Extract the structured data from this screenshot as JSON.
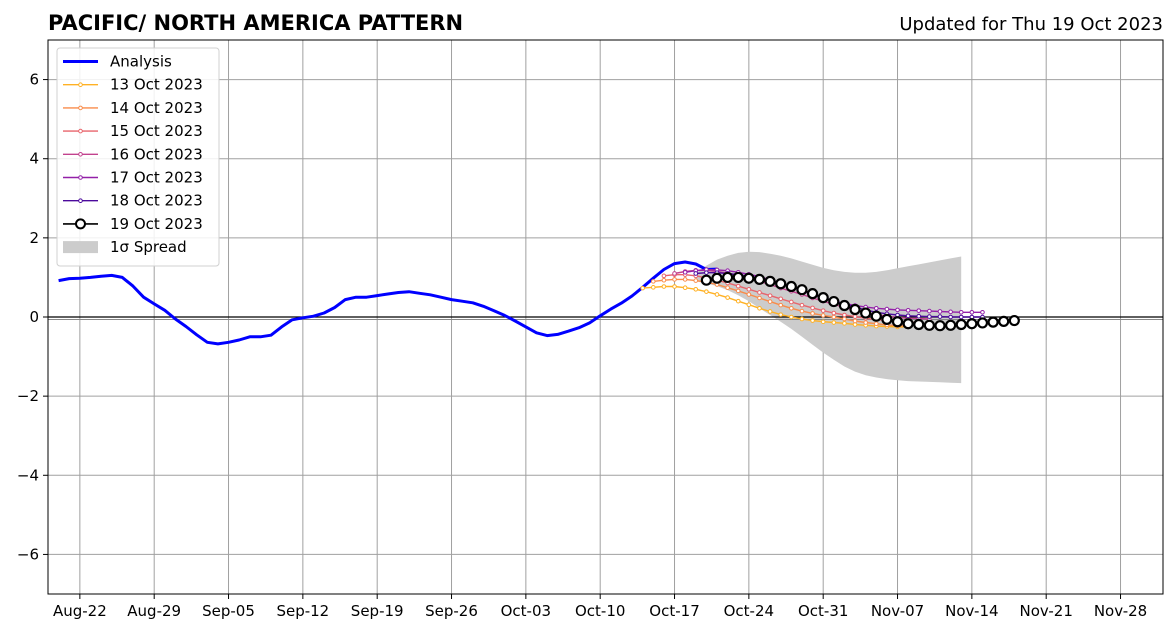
{
  "chart_data": {
    "type": "line",
    "title": "PACIFIC/ NORTH AMERICA PATTERN",
    "subtitle": "Updated for Thu 19 Oct 2023",
    "xlabel": "",
    "ylabel": "",
    "x_date_range": [
      "2023-08-19",
      "2023-12-02"
    ],
    "ylim": [
      -7,
      7
    ],
    "yticks": [
      -6,
      -4,
      -2,
      0,
      2,
      4,
      6
    ],
    "ytick_labels": [
      "−6",
      "−4",
      "−2",
      "0",
      "2",
      "4",
      "6"
    ],
    "xticks": [
      {
        "date": "2023-08-22",
        "label": "Aug-22"
      },
      {
        "date": "2023-08-29",
        "label": "Aug-29"
      },
      {
        "date": "2023-09-05",
        "label": "Sep-05"
      },
      {
        "date": "2023-09-12",
        "label": "Sep-12"
      },
      {
        "date": "2023-09-19",
        "label": "Sep-19"
      },
      {
        "date": "2023-09-26",
        "label": "Sep-26"
      },
      {
        "date": "2023-10-03",
        "label": "Oct-03"
      },
      {
        "date": "2023-10-10",
        "label": "Oct-10"
      },
      {
        "date": "2023-10-17",
        "label": "Oct-17"
      },
      {
        "date": "2023-10-24",
        "label": "Oct-24"
      },
      {
        "date": "2023-10-31",
        "label": "Oct-31"
      },
      {
        "date": "2023-11-07",
        "label": "Nov-07"
      },
      {
        "date": "2023-11-14",
        "label": "Nov-14"
      },
      {
        "date": "2023-11-21",
        "label": "Nov-21"
      },
      {
        "date": "2023-11-28",
        "label": "Nov-28"
      }
    ],
    "grid": true,
    "zero_line": true,
    "legend_position": "upper-left",
    "analysis": {
      "name": "Analysis",
      "color": "#0000ff",
      "start_date": "2023-08-20",
      "values": [
        0.92,
        0.97,
        0.98,
        1.0,
        1.03,
        1.05,
        1.0,
        0.78,
        0.5,
        0.33,
        0.17,
        -0.05,
        -0.24,
        -0.45,
        -0.64,
        -0.68,
        -0.64,
        -0.58,
        -0.5,
        -0.5,
        -0.46,
        -0.25,
        -0.07,
        -0.02,
        0.02,
        0.1,
        0.24,
        0.44,
        0.5,
        0.5,
        0.54,
        0.58,
        0.62,
        0.64,
        0.6,
        0.56,
        0.5,
        0.44,
        0.4,
        0.36,
        0.27,
        0.16,
        0.04,
        -0.1,
        -0.25,
        -0.4,
        -0.47,
        -0.44,
        -0.36,
        -0.27,
        -0.15,
        0.03,
        0.2,
        0.35,
        0.53,
        0.75,
        0.98,
        1.2,
        1.35,
        1.39,
        1.34,
        1.2,
        1.21
      ]
    },
    "forecasts": [
      {
        "name": "13 Oct 2023",
        "color": "#ffb124",
        "start_date": "2023-10-14",
        "values": [
          0.73,
          0.75,
          0.77,
          0.77,
          0.74,
          0.7,
          0.64,
          0.57,
          0.49,
          0.4,
          0.31,
          0.22,
          0.14,
          0.06,
          0.0,
          -0.05,
          -0.09,
          -0.12,
          -0.14,
          -0.16,
          -0.19,
          -0.21,
          -0.23,
          -0.24,
          -0.25,
          -0.25
        ]
      },
      {
        "name": "14 Oct 2023",
        "color": "#f98c4a",
        "start_date": "2023-10-15",
        "values": [
          0.9,
          0.93,
          0.95,
          0.95,
          0.92,
          0.88,
          0.82,
          0.74,
          0.66,
          0.57,
          0.48,
          0.39,
          0.3,
          0.22,
          0.15,
          0.09,
          0.04,
          0.0,
          -0.05,
          -0.1,
          -0.14,
          -0.17,
          -0.2,
          -0.22,
          -0.23
        ]
      },
      {
        "name": "15 Oct 2023",
        "color": "#e8646b",
        "start_date": "2023-10-16",
        "values": [
          1.04,
          1.07,
          1.07,
          1.04,
          0.99,
          0.93,
          0.86,
          0.78,
          0.7,
          0.62,
          0.54,
          0.46,
          0.38,
          0.3,
          0.23,
          0.16,
          0.1,
          0.05,
          0.01,
          -0.03,
          -0.06,
          -0.09,
          -0.11,
          -0.13,
          -0.14
        ]
      },
      {
        "name": "16 Oct 2023",
        "color": "#c2428e",
        "start_date": "2023-10-17",
        "values": [
          1.1,
          1.15,
          1.18,
          1.18,
          1.15,
          1.11,
          1.05,
          0.98,
          0.9,
          0.82,
          0.73,
          0.65,
          0.57,
          0.48,
          0.4,
          0.32,
          0.24,
          0.17,
          0.11,
          0.06,
          0.02,
          -0.01,
          -0.03,
          -0.04,
          -0.05
        ]
      },
      {
        "name": "17 Oct 2023",
        "color": "#9320a8",
        "start_date": "2023-10-18",
        "values": [
          1.13,
          1.17,
          1.2,
          1.19,
          1.17,
          1.13,
          1.08,
          1.02,
          0.94,
          0.86,
          0.76,
          0.66,
          0.56,
          0.47,
          0.4,
          0.34,
          0.29,
          0.25,
          0.22,
          0.2,
          0.18,
          0.17,
          0.16,
          0.15,
          0.14,
          0.13,
          0.12,
          0.12,
          0.12
        ]
      },
      {
        "name": "18 Oct 2023",
        "color": "#4b0a9c",
        "start_date": "2023-10-19",
        "values": [
          1.1,
          1.12,
          1.12,
          1.1,
          1.07,
          1.03,
          0.98,
          0.92,
          0.85,
          0.77,
          0.68,
          0.59,
          0.5,
          0.41,
          0.33,
          0.25,
          0.18,
          0.12,
          0.08,
          0.05,
          0.03,
          0.02,
          0.01,
          0.01,
          0.0,
          0.0,
          0.0,
          0.0
        ]
      },
      {
        "name": "19 Oct 2023",
        "color": "#000000",
        "marker_fill": "#ffffff",
        "start_date": "2023-10-20",
        "values": [
          0.93,
          0.98,
          1.0,
          1.0,
          0.98,
          0.95,
          0.9,
          0.84,
          0.77,
          0.69,
          0.59,
          0.49,
          0.39,
          0.29,
          0.19,
          0.1,
          0.02,
          -0.06,
          -0.12,
          -0.17,
          -0.19,
          -0.21,
          -0.22,
          -0.21,
          -0.19,
          -0.17,
          -0.15,
          -0.13,
          -0.11,
          -0.09
        ]
      }
    ],
    "spread": {
      "name": "1σ Spread",
      "color": "#cccccc",
      "start_date": "2023-10-19",
      "upper": [
        1.1,
        1.3,
        1.45,
        1.55,
        1.62,
        1.65,
        1.64,
        1.6,
        1.55,
        1.48,
        1.4,
        1.32,
        1.24,
        1.18,
        1.14,
        1.12,
        1.12,
        1.14,
        1.18,
        1.23,
        1.28,
        1.33,
        1.38,
        1.43,
        1.48,
        1.53
      ],
      "lower": [
        0.9,
        0.85,
        0.78,
        0.68,
        0.55,
        0.4,
        0.22,
        0.05,
        -0.12,
        -0.3,
        -0.5,
        -0.7,
        -0.9,
        -1.08,
        -1.25,
        -1.38,
        -1.47,
        -1.53,
        -1.57,
        -1.6,
        -1.62,
        -1.63,
        -1.64,
        -1.65,
        -1.66,
        -1.67
      ]
    },
    "legend": [
      {
        "label": "Analysis",
        "kind": "analysis",
        "color": "#0000ff"
      },
      {
        "label": "13 Oct 2023",
        "kind": "forecast",
        "color": "#ffb124"
      },
      {
        "label": "14 Oct 2023",
        "kind": "forecast",
        "color": "#f98c4a"
      },
      {
        "label": "15 Oct 2023",
        "kind": "forecast",
        "color": "#e8646b"
      },
      {
        "label": "16 Oct 2023",
        "kind": "forecast",
        "color": "#c2428e"
      },
      {
        "label": "17 Oct 2023",
        "kind": "forecast",
        "color": "#9320a8"
      },
      {
        "label": "18 Oct 2023",
        "kind": "forecast",
        "color": "#4b0a9c"
      },
      {
        "label": "19 Oct 2023",
        "kind": "current",
        "color": "#000000"
      },
      {
        "label": "1σ Spread",
        "kind": "spread",
        "color": "#cccccc"
      }
    ]
  }
}
